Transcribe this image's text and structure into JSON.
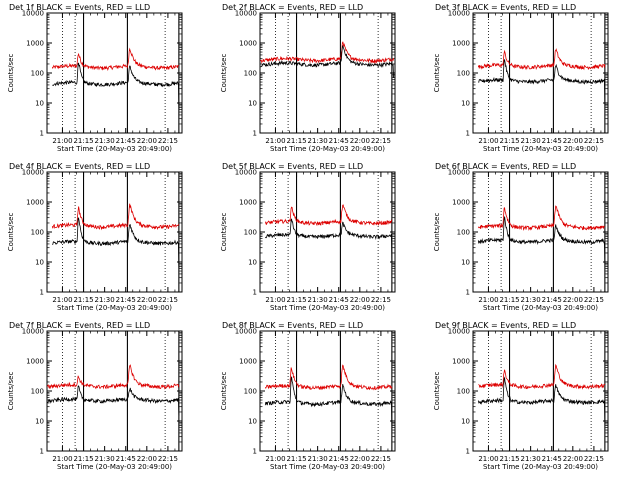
{
  "window": {
    "title": ""
  },
  "chart_data": [
    {
      "type": "line",
      "title": "Det  1f BLACK = Events, RED = LLD",
      "detector": "1f",
      "xlabel": "Start Time (20-May-03 20:49:00)",
      "ylabel": "Counts/sec",
      "yscale": "log",
      "ylim": [
        1,
        10000
      ],
      "xlim": [
        20.817,
        22.417
      ],
      "xticks": [
        "21:00",
        "21:15",
        "21:30",
        "21:45",
        "22:00",
        "22:15"
      ],
      "yticks": [
        "1",
        "10",
        "100",
        "1000",
        "10000"
      ],
      "dotted_lines_hours": [
        21.0,
        21.15,
        22.217
      ],
      "solid_lines_hours": [
        21.25,
        21.77,
        22.38
      ],
      "series": [
        {
          "name": "RED (LLD)",
          "color": "#dd0000",
          "baseline": 160,
          "peaks": [
            [
              21.19,
              450,
              0.015
            ],
            [
              21.8,
              650,
              0.02
            ]
          ],
          "start_hour": 20.88,
          "end_hour": 22.38
        },
        {
          "name": "BLACK (Events)",
          "color": "#000000",
          "baseline": 45,
          "peaks": [
            [
              21.19,
              260,
              0.012
            ],
            [
              21.8,
              160,
              0.02
            ]
          ],
          "start_hour": 20.88,
          "end_hour": 22.38,
          "end_drop": 6
        }
      ]
    },
    {
      "type": "line",
      "title": "Det  2f BLACK = Events, RED = LLD",
      "detector": "2f",
      "xlabel": "Start Time (20-May-03 20:49:00)",
      "ylabel": "Counts/sec",
      "yscale": "log",
      "ylim": [
        1,
        10000
      ],
      "xlim": [
        20.817,
        22.417
      ],
      "xticks": [
        "21:00",
        "21:15",
        "21:30",
        "21:45",
        "22:00",
        "22:15"
      ],
      "yticks": [
        "1",
        "10",
        "100",
        "1000",
        "10000"
      ],
      "dotted_lines_hours": [
        21.0,
        21.15,
        22.217
      ],
      "solid_lines_hours": [
        21.25,
        21.77,
        22.38
      ],
      "series": [
        {
          "name": "RED (LLD)",
          "color": "#dd0000",
          "baseline": 280,
          "peaks": [
            [
              21.8,
              1100,
              0.02
            ]
          ],
          "start_hour": 20.82,
          "end_hour": 22.4
        },
        {
          "name": "BLACK (Events)",
          "color": "#000000",
          "baseline": 200,
          "peaks": [
            [
              21.8,
              800,
              0.02
            ]
          ],
          "start_hour": 20.82,
          "end_hour": 22.4,
          "end_drop": 70
        }
      ]
    },
    {
      "type": "line",
      "title": "Det  3f BLACK = Events, RED = LLD",
      "detector": "3f",
      "xlabel": "Start Time (20-May-03 20:49:00)",
      "ylabel": "Counts/sec",
      "yscale": "log",
      "ylim": [
        1,
        10000
      ],
      "xlim": [
        20.817,
        22.417
      ],
      "xticks": [
        "21:00",
        "21:15",
        "21:30",
        "21:45",
        "22:00",
        "22:15"
      ],
      "yticks": [
        "1",
        "10",
        "100",
        "1000",
        "10000"
      ],
      "dotted_lines_hours": [
        21.0,
        21.15,
        22.217
      ],
      "solid_lines_hours": [
        21.25,
        21.77,
        22.38
      ],
      "series": [
        {
          "name": "RED (LLD)",
          "color": "#dd0000",
          "baseline": 170,
          "peaks": [
            [
              21.19,
              500,
              0.015
            ],
            [
              21.8,
              600,
              0.02
            ]
          ],
          "start_hour": 20.88,
          "end_hour": 22.38
        },
        {
          "name": "BLACK (Events)",
          "color": "#000000",
          "baseline": 55,
          "peaks": [
            [
              21.19,
              300,
              0.012
            ],
            [
              21.8,
              170,
              0.02
            ]
          ],
          "start_hour": 20.88,
          "end_hour": 22.38,
          "end_drop": 8
        }
      ]
    },
    {
      "type": "line",
      "title": "Det  4f BLACK = Events, RED = LLD",
      "detector": "4f",
      "xlabel": "Start Time (20-May-03 20:49:00)",
      "ylabel": "Counts/sec",
      "yscale": "log",
      "ylim": [
        1,
        10000
      ],
      "xlim": [
        20.817,
        22.417
      ],
      "xticks": [
        "21:00",
        "21:15",
        "21:30",
        "21:45",
        "22:00",
        "22:15"
      ],
      "yticks": [
        "1",
        "10",
        "100",
        "1000",
        "10000"
      ],
      "dotted_lines_hours": [
        21.0,
        21.15,
        22.217
      ],
      "solid_lines_hours": [
        21.25,
        21.77,
        22.38
      ],
      "series": [
        {
          "name": "RED (LLD)",
          "color": "#dd0000",
          "baseline": 160,
          "peaks": [
            [
              21.19,
              650,
              0.015
            ],
            [
              21.8,
              800,
              0.02
            ]
          ],
          "start_hour": 20.88,
          "end_hour": 22.38
        },
        {
          "name": "BLACK (Events)",
          "color": "#000000",
          "baseline": 45,
          "peaks": [
            [
              21.19,
              320,
              0.012
            ],
            [
              21.8,
              180,
              0.02
            ]
          ],
          "start_hour": 20.88,
          "end_hour": 22.38,
          "end_drop": 6
        }
      ]
    },
    {
      "type": "line",
      "title": "Det  5f BLACK = Events, RED = LLD",
      "detector": "5f",
      "xlabel": "Start Time (20-May-03 20:49:00)",
      "ylabel": "Counts/sec",
      "yscale": "log",
      "ylim": [
        1,
        10000
      ],
      "xlim": [
        20.817,
        22.417
      ],
      "xticks": [
        "21:00",
        "21:15",
        "21:30",
        "21:45",
        "22:00",
        "22:15"
      ],
      "yticks": [
        "1",
        "10",
        "100",
        "1000",
        "10000"
      ],
      "dotted_lines_hours": [
        21.0,
        21.15,
        22.217
      ],
      "solid_lines_hours": [
        21.25,
        21.77,
        22.38
      ],
      "series": [
        {
          "name": "RED (LLD)",
          "color": "#dd0000",
          "baseline": 210,
          "peaks": [
            [
              21.19,
              700,
              0.015
            ],
            [
              21.8,
              800,
              0.02
            ]
          ],
          "start_hour": 20.88,
          "end_hour": 22.38
        },
        {
          "name": "BLACK (Events)",
          "color": "#000000",
          "baseline": 75,
          "peaks": [
            [
              21.19,
              300,
              0.012
            ],
            [
              21.8,
              190,
              0.02
            ]
          ],
          "start_hour": 20.88,
          "end_hour": 22.38,
          "end_drop": 10
        }
      ]
    },
    {
      "type": "line",
      "title": "Det  6f BLACK = Events, RED = LLD",
      "detector": "6f",
      "xlabel": "Start Time (20-May-03 20:49:00)",
      "ylabel": "Counts/sec",
      "yscale": "log",
      "ylim": [
        1,
        10000
      ],
      "xlim": [
        20.817,
        22.417
      ],
      "xticks": [
        "21:00",
        "21:15",
        "21:30",
        "21:45",
        "22:00",
        "22:15"
      ],
      "yticks": [
        "1",
        "10",
        "100",
        "1000",
        "10000"
      ],
      "dotted_lines_hours": [
        21.0,
        21.15,
        22.217
      ],
      "solid_lines_hours": [
        21.25,
        21.77,
        22.38
      ],
      "series": [
        {
          "name": "RED (LLD)",
          "color": "#dd0000",
          "baseline": 150,
          "peaks": [
            [
              21.19,
              650,
              0.015
            ],
            [
              21.8,
              750,
              0.02
            ]
          ],
          "start_hour": 20.88,
          "end_hour": 22.38
        },
        {
          "name": "BLACK (Events)",
          "color": "#000000",
          "baseline": 50,
          "peaks": [
            [
              21.19,
              320,
              0.012
            ],
            [
              21.8,
              160,
              0.02
            ]
          ],
          "start_hour": 20.88,
          "end_hour": 22.38,
          "end_drop": 8
        }
      ]
    },
    {
      "type": "line",
      "title": "Det  7f BLACK = Events, RED = LLD",
      "detector": "7f",
      "xlabel": "Start Time (20-May-03 20:49:00)",
      "ylabel": "Counts/sec",
      "yscale": "log",
      "ylim": [
        1,
        10000
      ],
      "xlim": [
        20.817,
        22.417
      ],
      "xticks": [
        "21:00",
        "21:15",
        "21:30",
        "21:45",
        "22:00",
        "22:15"
      ],
      "yticks": [
        "1",
        "10",
        "100",
        "1000",
        "10000"
      ],
      "dotted_lines_hours": [
        21.0,
        21.15,
        22.217
      ],
      "solid_lines_hours": [
        21.25,
        21.77,
        22.38
      ],
      "series": [
        {
          "name": "RED (LLD)",
          "color": "#dd0000",
          "baseline": 150,
          "peaks": [
            [
              21.19,
              300,
              0.015
            ],
            [
              21.8,
              700,
              0.02
            ]
          ],
          "start_hour": 20.82,
          "end_hour": 22.38
        },
        {
          "name": "BLACK (Events)",
          "color": "#000000",
          "baseline": 50,
          "peaks": [
            [
              21.19,
              150,
              0.012
            ],
            [
              21.8,
              120,
              0.02
            ]
          ],
          "start_hour": 20.82,
          "end_hour": 22.38,
          "end_drop": 15
        }
      ]
    },
    {
      "type": "line",
      "title": "Det  8f BLACK = Events, RED = LLD",
      "detector": "8f",
      "xlabel": "Start Time (20-May-03 20:49:00)",
      "ylabel": "Counts/sec",
      "yscale": "log",
      "ylim": [
        1,
        10000
      ],
      "xlim": [
        20.817,
        22.417
      ],
      "xticks": [
        "21:00",
        "21:15",
        "21:30",
        "21:45",
        "22:00",
        "22:15"
      ],
      "yticks": [
        "1",
        "10",
        "100",
        "1000",
        "10000"
      ],
      "dotted_lines_hours": [
        21.0,
        21.15,
        22.217
      ],
      "solid_lines_hours": [
        21.25,
        21.77,
        22.38
      ],
      "series": [
        {
          "name": "RED (LLD)",
          "color": "#dd0000",
          "baseline": 140,
          "peaks": [
            [
              21.19,
              600,
              0.015
            ],
            [
              21.8,
              700,
              0.02
            ]
          ],
          "start_hour": 20.88,
          "end_hour": 22.38
        },
        {
          "name": "BLACK (Events)",
          "color": "#000000",
          "baseline": 40,
          "peaks": [
            [
              21.19,
              300,
              0.012
            ],
            [
              21.8,
              150,
              0.02
            ]
          ],
          "start_hour": 20.88,
          "end_hour": 22.38,
          "end_drop": 6
        }
      ]
    },
    {
      "type": "line",
      "title": "Det  9f BLACK = Events, RED = LLD",
      "detector": "9f",
      "xlabel": "Start Time (20-May-03 20:49:00)",
      "ylabel": "Counts/sec",
      "yscale": "log",
      "ylim": [
        1,
        10000
      ],
      "xlim": [
        20.817,
        22.417
      ],
      "xticks": [
        "21:00",
        "21:15",
        "21:30",
        "21:45",
        "22:00",
        "22:15"
      ],
      "yticks": [
        "1",
        "10",
        "100",
        "1000",
        "10000"
      ],
      "dotted_lines_hours": [
        21.0,
        21.15,
        22.217
      ],
      "solid_lines_hours": [
        21.25,
        21.77,
        22.38
      ],
      "series": [
        {
          "name": "RED (LLD)",
          "color": "#dd0000",
          "baseline": 150,
          "peaks": [
            [
              21.19,
              500,
              0.015
            ],
            [
              21.8,
              700,
              0.02
            ]
          ],
          "start_hour": 20.88,
          "end_hour": 22.38
        },
        {
          "name": "BLACK (Events)",
          "color": "#000000",
          "baseline": 45,
          "peaks": [
            [
              21.19,
              280,
              0.012
            ],
            [
              21.8,
              150,
              0.02
            ]
          ],
          "start_hour": 20.88,
          "end_hour": 22.38,
          "end_drop": 8
        }
      ]
    }
  ]
}
